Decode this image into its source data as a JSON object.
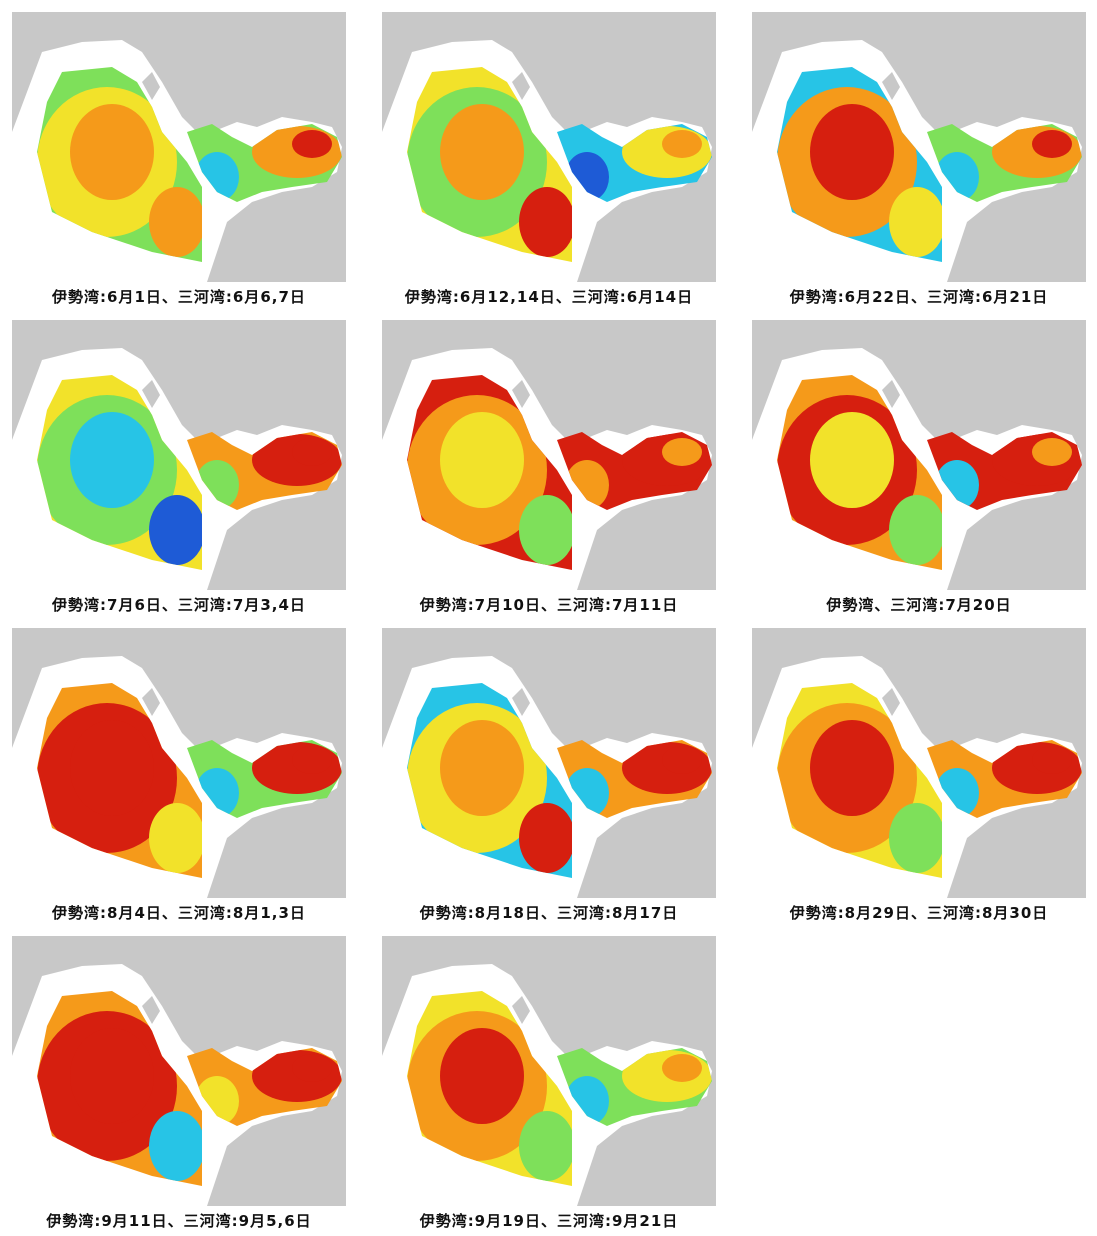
{
  "panels": [
    {
      "caption": "伊勢湾:6月1日、三河湾:6月6,7日",
      "scheme": "a"
    },
    {
      "caption": "伊勢湾:6月12,14日、三河湾:6月14日",
      "scheme": "b"
    },
    {
      "caption": "伊勢湾:6月22日、三河湾:6月21日",
      "scheme": "c"
    },
    {
      "caption": "伊勢湾:7月6日、三河湾:7月3,4日",
      "scheme": "d"
    },
    {
      "caption": "伊勢湾:7月10日、三河湾:7月11日",
      "scheme": "e"
    },
    {
      "caption": "伊勢湾、三河湾:7月20日",
      "scheme": "f"
    },
    {
      "caption": "伊勢湾:8月4日、三河湾:8月1,3日",
      "scheme": "g"
    },
    {
      "caption": "伊勢湾:8月18日、三河湾:8月17日",
      "scheme": "h"
    },
    {
      "caption": "伊勢湾:8月29日、三河湾:8月30日",
      "scheme": "i"
    },
    {
      "caption": "伊勢湾:9月11日、三河湾:9月5,6日",
      "scheme": "j"
    },
    {
      "caption": "伊勢湾:9月19日、三河湾:9月21日",
      "scheme": "k"
    }
  ],
  "colors": {
    "land": "#c8c8c8",
    "sea": "#ffffff",
    "blue": "#1e5bd6",
    "cyan": "#27c4e6",
    "green": "#7ee05a",
    "yellow": "#f2e22a",
    "orange": "#f59a1a",
    "red": "#d61f0f"
  }
}
